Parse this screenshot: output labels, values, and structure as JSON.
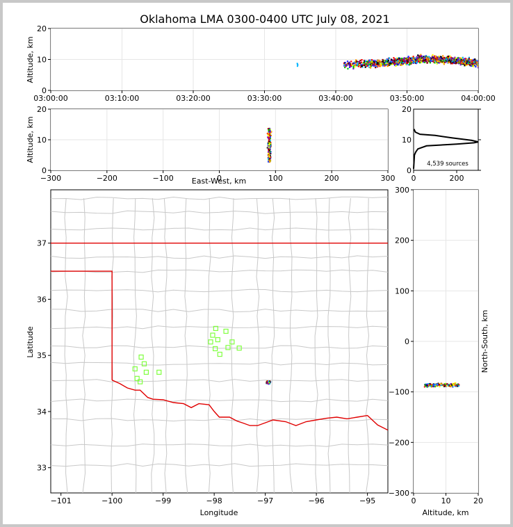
{
  "chart_data": {
    "type": "scatter",
    "title": "Oklahoma LMA 0300-0400 UTC July 08, 2021",
    "source_count_label": "4,539 sources",
    "colors": {
      "state_border": "#e00000",
      "county_lines": "#c8c8c8",
      "stations": "#80ff40",
      "grid": "#e6e6e6"
    },
    "time_height": {
      "ylabel": "Altitude, km",
      "ylim": [
        0,
        20
      ],
      "yticks": [
        "0",
        "10",
        "20"
      ],
      "xticks": [
        "03:00:00",
        "03:10:00",
        "03:20:00",
        "03:30:00",
        "03:40:00",
        "03:50:00",
        "04:00:00"
      ],
      "xlim_minutes": [
        0,
        60
      ],
      "activity": [
        {
          "minute": 34.5,
          "altitude": 8.3
        },
        {
          "minute": 41.0,
          "altitude": 8.4
        },
        {
          "minute": 43.0,
          "altitude": 8.8
        },
        {
          "minute": 46.0,
          "altitude": 9.0
        },
        {
          "minute": 49.0,
          "altitude": 9.6
        },
        {
          "minute": 52.0,
          "altitude": 10.4
        },
        {
          "minute": 55.0,
          "altitude": 10.2
        },
        {
          "minute": 58.0,
          "altitude": 9.6
        },
        {
          "minute": 60.0,
          "altitude": 9.0
        }
      ]
    },
    "east_west": {
      "ylabel": "Altitude, km",
      "xlabel": "East-West, km",
      "xlim": [
        -300,
        300
      ],
      "ylim": [
        0,
        20
      ],
      "xticks": [
        "−300",
        "−200",
        "−100",
        "0",
        "100",
        "200",
        "300"
      ],
      "yticks": [
        "0",
        "10",
        "20"
      ],
      "center_km": 88,
      "altitude_range": [
        3,
        14
      ]
    },
    "altitude_histogram": {
      "xlim": [
        0,
        300
      ],
      "ylim": [
        0,
        20
      ],
      "xticks": [
        "0",
        "200"
      ],
      "yticks": [
        "0",
        "10",
        "20"
      ],
      "profile": [
        [
          0,
          0.5
        ],
        [
          4,
          5.0
        ],
        [
          10,
          6.0
        ],
        [
          20,
          7.0
        ],
        [
          60,
          8.0
        ],
        [
          200,
          8.6
        ],
        [
          280,
          9.0
        ],
        [
          300,
          9.3
        ],
        [
          270,
          9.8
        ],
        [
          180,
          10.6
        ],
        [
          100,
          11.4
        ],
        [
          30,
          11.8
        ],
        [
          8,
          12.5
        ],
        [
          2,
          13.5
        ]
      ]
    },
    "plan_view": {
      "xlabel": "Longitude",
      "ylabel": "Latitude",
      "xlim": [
        -101.2,
        -94.6
      ],
      "ylim": [
        32.55,
        37.95
      ],
      "xticks": [
        "−101",
        "−100",
        "−99",
        "−98",
        "−97",
        "−96",
        "−95"
      ],
      "yticks": [
        "33",
        "34",
        "35",
        "36",
        "37"
      ],
      "storm_center": [
        -96.95,
        34.53
      ],
      "stations": [
        [
          -97.97,
          35.48
        ],
        [
          -97.77,
          35.43
        ],
        [
          -98.03,
          35.36
        ],
        [
          -97.93,
          35.28
        ],
        [
          -98.07,
          35.24
        ],
        [
          -97.65,
          35.24
        ],
        [
          -97.98,
          35.12
        ],
        [
          -97.73,
          35.14
        ],
        [
          -97.51,
          35.13
        ],
        [
          -97.89,
          35.02
        ],
        [
          -99.43,
          34.97
        ],
        [
          -99.37,
          34.85
        ],
        [
          -99.55,
          34.76
        ],
        [
          -99.33,
          34.7
        ],
        [
          -99.08,
          34.7
        ],
        [
          -99.51,
          34.59
        ],
        [
          -99.45,
          34.53
        ]
      ]
    },
    "north_south": {
      "xlabel": "Altitude, km",
      "ylabel": "North-South, km",
      "xlim": [
        0,
        20
      ],
      "ylim": [
        -300,
        300
      ],
      "xticks": [
        "0",
        "10",
        "20"
      ],
      "yticks": [
        "−300",
        "−200",
        "−100",
        "0",
        "100",
        "200",
        "300"
      ],
      "center_km": -85,
      "altitude_range": [
        3,
        14
      ]
    }
  }
}
